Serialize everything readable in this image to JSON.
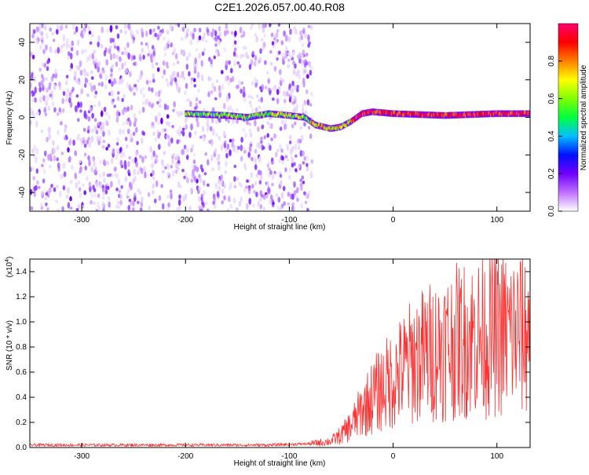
{
  "title": "C2E1.2026.057.00.40.R08",
  "chart_data": [
    {
      "type": "heatmap",
      "xlabel": "Height of straight line (km)",
      "ylabel": "Frequency (Hz)",
      "xlim": [
        -350,
        132
      ],
      "ylim": [
        -50,
        50
      ],
      "xticks": [
        -300,
        -200,
        -100,
        0,
        100
      ],
      "yticks": [
        -40,
        -20,
        0,
        20,
        40
      ],
      "colorbar": {
        "label": "Normalized spectral amplitude",
        "range": [
          0.0,
          1.0
        ],
        "ticks": [
          "0.0",
          "0.2",
          "0.4",
          "0.6",
          "0.8"
        ],
        "colormap": [
          "#ffffff",
          "#c070ff",
          "#7000ff",
          "#0010ff",
          "#00c0ff",
          "#00ff40",
          "#80ff00",
          "#ffff00",
          "#ff8000",
          "#ff0000",
          "#ff0070"
        ]
      },
      "description_ridge": {
        "x": [
          -200,
          -160,
          -140,
          -120,
          -100,
          -85,
          -75,
          -60,
          -50,
          -40,
          -30,
          -20,
          0,
          50,
          100,
          132
        ],
        "y": [
          2,
          1,
          0,
          2,
          1,
          0,
          -4,
          -6,
          -5,
          -2,
          2,
          3,
          2,
          1,
          2,
          2
        ]
      },
      "noise_region_xlim": [
        -350,
        -78
      ]
    },
    {
      "type": "line",
      "xlabel": "Height of straight line (km)",
      "ylabel": "SNR (10 * v/v)",
      "multiplier": "(x10",
      "multiplier_exp": "4",
      "multiplier_close": ")",
      "xlim": [
        -350,
        132
      ],
      "ylim": [
        0,
        1.5
      ],
      "xticks": [
        -300,
        -200,
        -100,
        0,
        100
      ],
      "yticks": [
        "0.0",
        "0.2",
        "0.4",
        "0.6",
        "0.8",
        "1.0",
        "1.2",
        "1.4"
      ],
      "series_color": "#ff3030",
      "trend": {
        "x": [
          -350,
          -120,
          -80,
          -60,
          -50,
          -40,
          -30,
          -20,
          -10,
          0,
          10,
          20,
          40,
          60,
          80,
          100,
          132
        ],
        "y": [
          0.02,
          0.02,
          0.03,
          0.05,
          0.1,
          0.18,
          0.3,
          0.4,
          0.48,
          0.55,
          0.62,
          0.7,
          0.78,
          0.84,
          0.88,
          0.9,
          0.92
        ]
      }
    }
  ]
}
